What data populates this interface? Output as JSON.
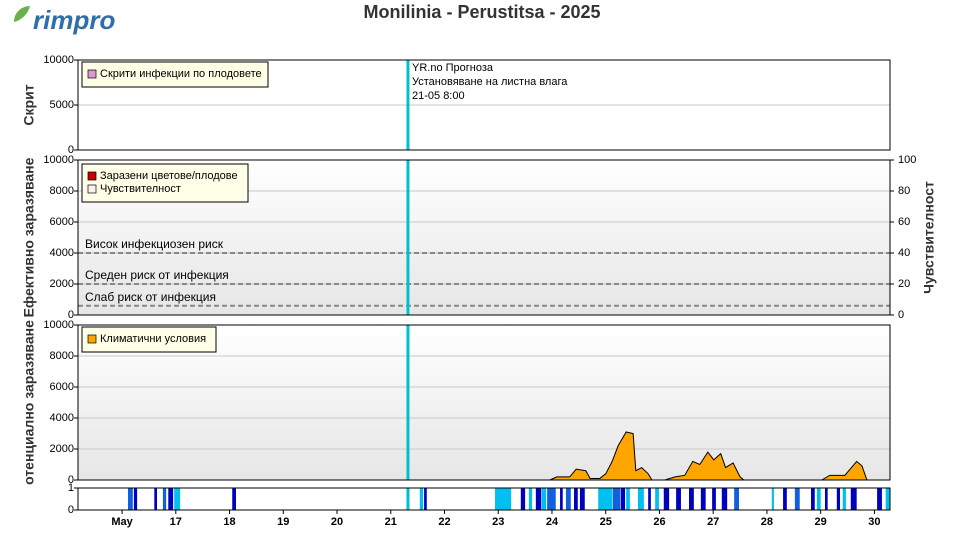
{
  "logo": "rimpro",
  "title": "Monilinia - Perustitsa - 2025",
  "forecast": {
    "x": 21.32,
    "color": "#00c0d0",
    "annotations": [
      "YR.no Прогноза",
      "Установяване на листна влага",
      "21-05 8:00"
    ]
  },
  "chart_data": [
    {
      "type": "line",
      "ylabel": "Скрит",
      "ylim": [
        0,
        10000
      ],
      "yticks": [
        0,
        5000,
        10000
      ],
      "grid": true,
      "series": [
        {
          "name": "Скрити инфекции по плодовете",
          "color": "#dd99cc",
          "values": []
        }
      ]
    },
    {
      "type": "line",
      "ylabel": "Ефективно заразяване",
      "ylim": [
        0,
        10000
      ],
      "yticks": [
        0,
        2000,
        4000,
        6000,
        8000,
        10000
      ],
      "y2label": "Чувствителност",
      "y2lim": [
        0,
        100
      ],
      "y2ticks": [
        0,
        20,
        40,
        60,
        80,
        100
      ],
      "grid": true,
      "thresholds": [
        {
          "label": "Висок инфекциозен риск",
          "value": 4000
        },
        {
          "label": "Среден риск от инфекция",
          "value": 2000
        },
        {
          "label": "Слаб риск от инфекция",
          "value": 600
        }
      ],
      "series": [
        {
          "name": "Заразени цветове/плодове",
          "color": "#cc0000",
          "values": []
        },
        {
          "name": "Чувствителност",
          "color": "#fff0f0",
          "axis": "y2",
          "values": []
        }
      ]
    },
    {
      "type": "area",
      "ylabel": "отенциално заразяване",
      "ylim": [
        0,
        10000
      ],
      "yticks": [
        0,
        2000,
        4000,
        6000,
        8000,
        10000
      ],
      "grid": true,
      "x": [
        23.96,
        24.09,
        24.33,
        24.45,
        24.63,
        24.71,
        24.89,
        25.0,
        25.12,
        25.23,
        25.38,
        25.51,
        25.56,
        25.67,
        25.79,
        25.86,
        26.1,
        26.29,
        26.47,
        26.62,
        26.75,
        26.9,
        27.01,
        27.14,
        27.23,
        27.37,
        27.5,
        27.57,
        null,
        29.02,
        29.17,
        29.45,
        29.67,
        29.77,
        29.86
      ],
      "series": [
        {
          "name": "Климатични условия",
          "color": "#ffa500",
          "values": [
            0,
            200,
            200,
            700,
            600,
            100,
            100,
            400,
            1200,
            2200,
            3100,
            3000,
            600,
            800,
            400,
            0,
            0,
            200,
            300,
            1200,
            1000,
            1800,
            1300,
            1700,
            800,
            1100,
            200,
            0,
            null,
            0,
            300,
            300,
            1200,
            900,
            0
          ]
        }
      ]
    },
    {
      "type": "range-bar",
      "ylim": [
        0,
        1
      ],
      "yticks": [
        0,
        1
      ],
      "xlim": [
        15.18,
        30.29
      ],
      "xticks": [
        {
          "value": 16,
          "label": "May"
        },
        17,
        18,
        19,
        20,
        21,
        22,
        23,
        24,
        25,
        26,
        27,
        28,
        29,
        30
      ],
      "x0": [
        16.11,
        16.22,
        16.6,
        16.76,
        16.86,
        16.97,
        18.05,
        21.54,
        21.62,
        22.94,
        23.42,
        23.57,
        23.7,
        23.81,
        23.91,
        24.15,
        24.26,
        24.41,
        24.52,
        24.86,
        25.13,
        25.28,
        25.38,
        25.6,
        25.79,
        25.92,
        26.08,
        26.31,
        26.55,
        26.77,
        26.98,
        27.16,
        27.39,
        28.09,
        28.3,
        28.52,
        28.82,
        28.93,
        29.08,
        29.3,
        29.41,
        29.56,
        30.05,
        30.21
      ],
      "x1": [
        16.2,
        16.28,
        16.65,
        16.82,
        16.95,
        17.08,
        18.12,
        21.6,
        21.67,
        23.24,
        23.5,
        23.63,
        23.8,
        23.89,
        24.07,
        24.2,
        24.35,
        24.48,
        24.61,
        25.12,
        25.27,
        25.36,
        25.45,
        25.71,
        25.84,
        25.99,
        26.18,
        26.4,
        26.64,
        26.86,
        27.05,
        27.26,
        27.48,
        28.13,
        28.37,
        28.61,
        28.89,
        29.0,
        29.13,
        29.36,
        29.47,
        29.67,
        30.14,
        30.29
      ],
      "values": [
        1,
        1,
        1,
        1,
        1,
        1,
        1,
        1,
        1,
        1,
        1,
        1,
        1,
        1,
        1,
        1,
        1,
        1,
        1,
        1,
        1,
        1,
        1,
        1,
        1,
        1,
        1,
        1,
        1,
        1,
        1,
        1,
        1,
        1,
        1,
        1,
        1,
        1,
        1,
        1,
        1,
        1,
        1,
        1
      ],
      "colors": [
        "#1060e0",
        "#0000c0",
        "#0000c0",
        "#1060e0",
        "#0000c0",
        "#00c0f0",
        "#0000c0",
        "#00c0f0",
        "#0000c0",
        "#00c0f0",
        "#0000c0",
        "#00c0f0",
        "#0000c0",
        "#00c0f0",
        "#1060e0",
        "#0000c0",
        "#1060e0",
        "#0000c0",
        "#0000c0",
        "#00c0f0",
        "#1060e0",
        "#0000c0",
        "#00c0f0",
        "#00c0f0",
        "#0000c0",
        "#00c0f0",
        "#0000c0",
        "#0000c0",
        "#0000c0",
        "#0000c0",
        "#0000c0",
        "#0000c0",
        "#1060e0",
        "#00c0f0",
        "#0000c0",
        "#1060e0",
        "#0000c0",
        "#00c0f0",
        "#0000c0",
        "#0000c0",
        "#00c0f0",
        "#0000c0",
        "#0000c0",
        "#00c0f0"
      ]
    }
  ]
}
